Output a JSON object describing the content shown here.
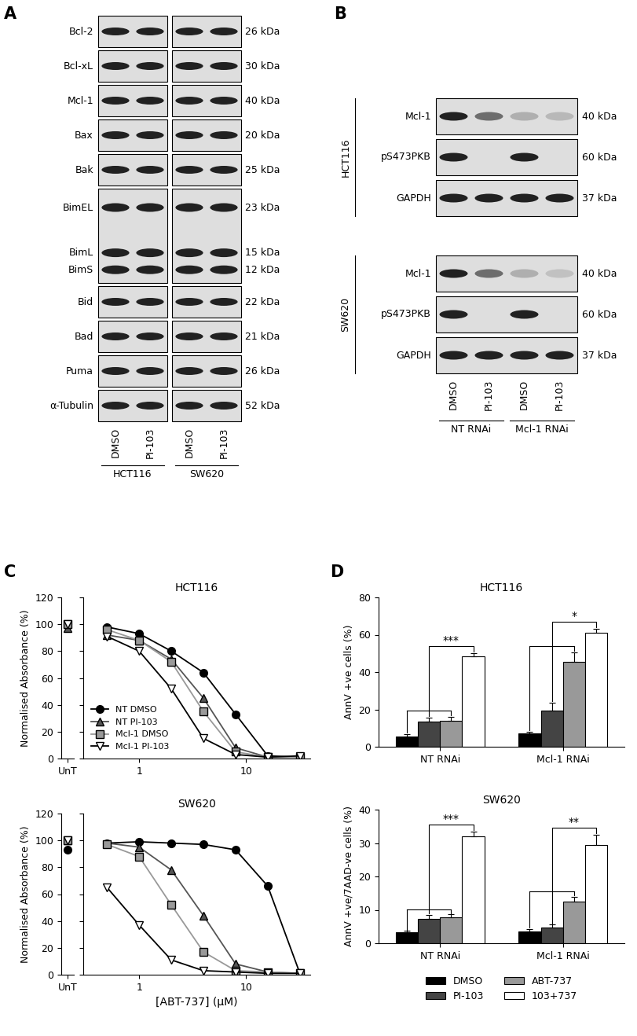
{
  "panel_letters": [
    "A",
    "B",
    "C",
    "D"
  ],
  "panel_a": {
    "rows": [
      {
        "labels": [
          "Bcl-2"
        ],
        "kda": [
          "26 kDa"
        ]
      },
      {
        "labels": [
          "Bcl-xL"
        ],
        "kda": [
          "30 kDa"
        ]
      },
      {
        "labels": [
          "Mcl-1"
        ],
        "kda": [
          "40 kDa"
        ]
      },
      {
        "labels": [
          "Bax"
        ],
        "kda": [
          "20 kDa"
        ]
      },
      {
        "labels": [
          "Bak"
        ],
        "kda": [
          "25 kDa"
        ]
      },
      {
        "labels": [
          "BimEL",
          "BimL",
          "BimS"
        ],
        "kda": [
          "23 kDa",
          "15 kDa",
          "12 kDa"
        ]
      },
      {
        "labels": [
          "Bid"
        ],
        "kda": [
          "22 kDa"
        ]
      },
      {
        "labels": [
          "Bad"
        ],
        "kda": [
          "21 kDa"
        ]
      },
      {
        "labels": [
          "Puma"
        ],
        "kda": [
          "26 kDa"
        ]
      },
      {
        "labels": [
          "α-Tubulin"
        ],
        "kda": [
          "52 kDa"
        ]
      }
    ],
    "lanes": [
      "DMSO",
      "PI-103",
      "DMSO",
      "PI-103"
    ],
    "groups": [
      "HCT116",
      "SW620"
    ]
  },
  "panel_b": {
    "blocks": [
      {
        "cell_line": "HCT116",
        "rows": [
          {
            "label": "Mcl-1",
            "kda": "40 kDa",
            "band_intensity": [
              1.0,
              0.6,
              0.25,
              0.2
            ]
          },
          {
            "label": "pS473PKB",
            "kda": "60 kDa",
            "band_intensity": [
              1.0,
              0.0,
              1.0,
              0.0
            ]
          },
          {
            "label": "GAPDH",
            "kda": "37 kDa",
            "band_intensity": [
              1.0,
              1.0,
              1.0,
              1.0
            ]
          }
        ]
      },
      {
        "cell_line": "SW620",
        "rows": [
          {
            "label": "Mcl-1",
            "kda": "40 kDa",
            "band_intensity": [
              1.0,
              0.6,
              0.25,
              0.15
            ]
          },
          {
            "label": "pS473PKB",
            "kda": "60 kDa",
            "band_intensity": [
              1.0,
              0.0,
              1.0,
              0.0
            ]
          },
          {
            "label": "GAPDH",
            "kda": "37 kDa",
            "band_intensity": [
              1.0,
              1.0,
              1.0,
              1.0
            ]
          }
        ]
      }
    ],
    "lanes": [
      "DMSO",
      "PI-103",
      "DMSO",
      "PI-103"
    ],
    "groups": [
      "NT RNAi",
      "Mcl-1 RNAi"
    ]
  },
  "chart_data": [
    {
      "type": "line",
      "panel": "C",
      "title": "HCT116",
      "ylabel": "Normalised Absorbance (%)",
      "log": "x",
      "untreated_label": "UnT",
      "x": [
        0.5,
        1,
        2,
        4,
        8,
        16,
        32
      ],
      "xlim": [
        0.3,
        40
      ],
      "xticks": [
        1,
        10
      ],
      "ylim": [
        0,
        120
      ],
      "yticks": [
        0,
        20,
        40,
        60,
        80,
        100,
        120
      ],
      "legend": "lower left",
      "series": [
        {
          "name": "NT DMSO",
          "color": "#000000",
          "marker": "circle",
          "line_style": "solid",
          "untreated": 100,
          "values": [
            98,
            93,
            80,
            64,
            33,
            2,
            1
          ]
        },
        {
          "name": "NT PI-103",
          "color": "#555555",
          "marker": "triangle_up",
          "line_style": "solid",
          "untreated": 97,
          "values": [
            92,
            88,
            74,
            45,
            8,
            1,
            1
          ]
        },
        {
          "name": "Mcl-1 DMSO",
          "color": "#999999",
          "marker": "square",
          "line_style": "solid",
          "untreated": 100,
          "values": [
            96,
            88,
            72,
            35,
            5,
            1,
            1
          ]
        },
        {
          "name": "Mcl-1 PI-103",
          "color": "#ffffff",
          "marker": "triangle_down",
          "line_style": "solid",
          "untreated": 100,
          "values": [
            91,
            80,
            52,
            15,
            3,
            1,
            2
          ]
        }
      ]
    },
    {
      "type": "line",
      "panel": "C",
      "title": "SW620",
      "ylabel": "Normalised Absorbance (%)",
      "xlabel": "[ABT-737] (μM)",
      "log": "x",
      "untreated_label": "UnT",
      "x": [
        0.5,
        1,
        2,
        4,
        8,
        16,
        32
      ],
      "xlim": [
        0.3,
        40
      ],
      "xticks": [
        1,
        10
      ],
      "ylim": [
        0,
        120
      ],
      "yticks": [
        0,
        20,
        40,
        60,
        80,
        100,
        120
      ],
      "series": [
        {
          "name": "NT DMSO",
          "color": "#000000",
          "marker": "circle",
          "line_style": "solid",
          "untreated": 93,
          "values": [
            98,
            99,
            98,
            97,
            93,
            66,
            1
          ]
        },
        {
          "name": "NT PI-103",
          "color": "#555555",
          "marker": "triangle_up",
          "line_style": "solid",
          "untreated": 100,
          "values": [
            98,
            95,
            78,
            44,
            8,
            2,
            1
          ]
        },
        {
          "name": "Mcl-1 DMSO",
          "color": "#999999",
          "marker": "square",
          "line_style": "solid",
          "untreated": 100,
          "values": [
            97,
            88,
            52,
            17,
            3,
            2,
            1
          ]
        },
        {
          "name": "Mcl-1 PI-103",
          "color": "#ffffff",
          "marker": "triangle_down",
          "line_style": "solid",
          "untreated": 100,
          "values": [
            65,
            37,
            11,
            3,
            2,
            1,
            1
          ]
        }
      ]
    },
    {
      "type": "bar",
      "panel": "D",
      "title": "HCT116",
      "ylabel": "AnnV +ve cells (%)",
      "categories": [
        "NT RNAi",
        "Mcl-1 RNAi"
      ],
      "ylim": [
        0,
        80
      ],
      "yticks": [
        0,
        20,
        40,
        60,
        80
      ],
      "series": [
        {
          "name": "DMSO",
          "color": "#000000",
          "values": [
            5.5,
            7
          ],
          "errors": [
            1.2,
            1.2
          ]
        },
        {
          "name": "PI-103",
          "color": "#444444",
          "values": [
            13.5,
            19.5
          ],
          "errors": [
            2,
            4
          ]
        },
        {
          "name": "ABT-737",
          "color": "#999999",
          "values": [
            14,
            45.5
          ],
          "errors": [
            2,
            5
          ]
        },
        {
          "name": "103+737",
          "color": "#ffffff",
          "values": [
            48.5,
            61
          ],
          "errors": [
            1.5,
            2
          ]
        }
      ],
      "significance": [
        {
          "category": "NT RNAi",
          "label": "***"
        },
        {
          "category": "Mcl-1 RNAi",
          "label": "*"
        }
      ]
    },
    {
      "type": "bar",
      "panel": "D",
      "title": "SW620",
      "ylabel": "AnnV +ve/7AAD-ve cells (%)",
      "categories": [
        "NT RNAi",
        "Mcl-1 RNAi"
      ],
      "ylim": [
        0,
        40
      ],
      "yticks": [
        0,
        10,
        20,
        30,
        40
      ],
      "legend": "lower center",
      "series": [
        {
          "name": "DMSO",
          "color": "#000000",
          "values": [
            3.3,
            3.6
          ],
          "errors": [
            0.4,
            0.6
          ]
        },
        {
          "name": "PI-103",
          "color": "#444444",
          "values": [
            7.3,
            4.8
          ],
          "errors": [
            1.2,
            0.8
          ]
        },
        {
          "name": "ABT-737",
          "color": "#999999",
          "values": [
            7.8,
            12.5
          ],
          "errors": [
            0.8,
            1.5
          ]
        },
        {
          "name": "103+737",
          "color": "#ffffff",
          "values": [
            32,
            29.5
          ],
          "errors": [
            1.5,
            3
          ]
        }
      ],
      "significance": [
        {
          "category": "NT RNAi",
          "label": "***"
        },
        {
          "category": "Mcl-1 RNAi",
          "label": "**"
        }
      ]
    }
  ]
}
